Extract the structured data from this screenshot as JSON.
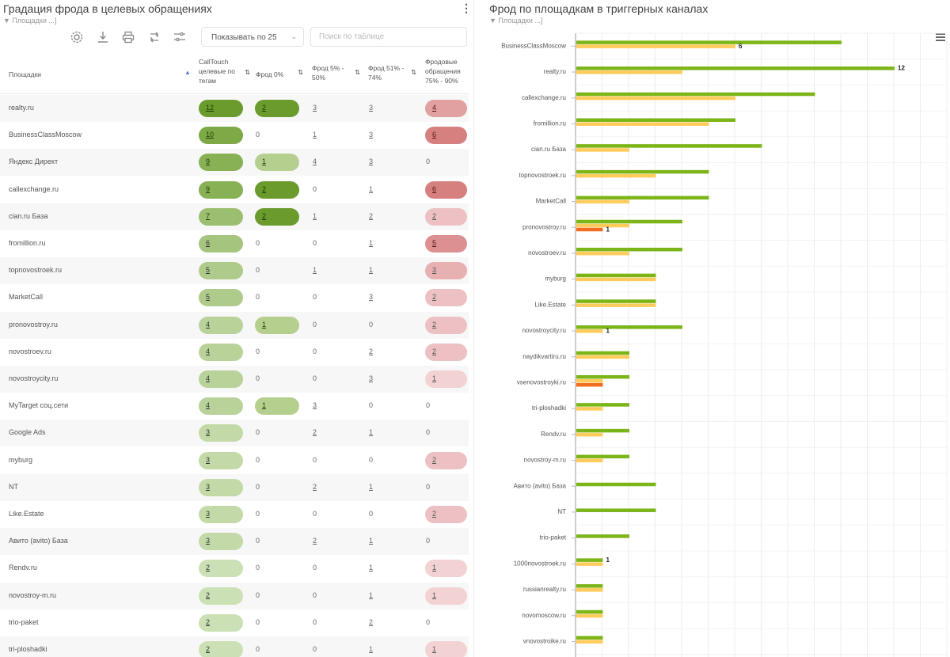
{
  "left_panel": {
    "title": "Градация фрода в целевых обращениях",
    "filter": "▼ Площадки   ...]",
    "kebab": "⋮",
    "page_size": "Показывать по 25",
    "search_placeholder": "Поиск по таблице",
    "toolbar_icons": [
      "gear-icon",
      "download-icon",
      "print-icon",
      "refresh-icon",
      "filter-settings-icon"
    ],
    "columns": {
      "platform": "Площадки",
      "calltouch": "CallTouch целевые по тегам",
      "fraud0": "Фрод 0%",
      "fraud5": "Фрод 5% - 50%",
      "fraud51": "Фрод 51% - 74%",
      "fraud75": "Фродовые обращения 75% - 90%"
    },
    "rows": [
      {
        "platform": "realty.ru",
        "calltouch": "12",
        "fraud0": "2",
        "fraud5": "3",
        "fraud51": "3",
        "fraud75": "4"
      },
      {
        "platform": "BusinessClassMoscow",
        "calltouch": "10",
        "fraud0": "0",
        "fraud5": "1",
        "fraud51": "3",
        "fraud75": "6"
      },
      {
        "platform": "Яндекс Директ",
        "calltouch": "9",
        "fraud0": "1",
        "fraud5": "4",
        "fraud51": "3",
        "fraud75": "0"
      },
      {
        "platform": "callexchange.ru",
        "calltouch": "9",
        "fraud0": "2",
        "fraud5": "0",
        "fraud51": "1",
        "fraud75": "6"
      },
      {
        "platform": "cian.ru База",
        "calltouch": "7",
        "fraud0": "2",
        "fraud5": "1",
        "fraud51": "2",
        "fraud75": "2"
      },
      {
        "platform": "fromillion.ru",
        "calltouch": "6",
        "fraud0": "0",
        "fraud5": "0",
        "fraud51": "1",
        "fraud75": "5"
      },
      {
        "platform": "topnovostroek.ru",
        "calltouch": "5",
        "fraud0": "0",
        "fraud5": "1",
        "fraud51": "1",
        "fraud75": "3"
      },
      {
        "platform": "MarketCall",
        "calltouch": "5",
        "fraud0": "0",
        "fraud5": "0",
        "fraud51": "3",
        "fraud75": "2"
      },
      {
        "platform": "pronovostroy.ru",
        "calltouch": "4",
        "fraud0": "1",
        "fraud5": "0",
        "fraud51": "0",
        "fraud75": "2"
      },
      {
        "platform": "novostroev.ru",
        "calltouch": "4",
        "fraud0": "0",
        "fraud5": "0",
        "fraud51": "2",
        "fraud75": "2"
      },
      {
        "platform": "novostroycity.ru",
        "calltouch": "4",
        "fraud0": "0",
        "fraud5": "0",
        "fraud51": "3",
        "fraud75": "1"
      },
      {
        "platform": "MyTarget соц.сети",
        "calltouch": "4",
        "fraud0": "1",
        "fraud5": "3",
        "fraud51": "0",
        "fraud75": "0"
      },
      {
        "platform": "Google Ads",
        "calltouch": "3",
        "fraud0": "0",
        "fraud5": "2",
        "fraud51": "1",
        "fraud75": "0"
      },
      {
        "platform": "myburg",
        "calltouch": "3",
        "fraud0": "0",
        "fraud5": "0",
        "fraud51": "0",
        "fraud75": "2"
      },
      {
        "platform": "NT",
        "calltouch": "3",
        "fraud0": "0",
        "fraud5": "2",
        "fraud51": "1",
        "fraud75": "0"
      },
      {
        "platform": "Like.Estate",
        "calltouch": "3",
        "fraud0": "0",
        "fraud5": "0",
        "fraud51": "0",
        "fraud75": "2"
      },
      {
        "platform": "Авито (avito) База",
        "calltouch": "3",
        "fraud0": "0",
        "fraud5": "2",
        "fraud51": "1",
        "fraud75": "0"
      },
      {
        "platform": "Rendv.ru",
        "calltouch": "2",
        "fraud0": "0",
        "fraud5": "0",
        "fraud51": "1",
        "fraud75": "1"
      },
      {
        "platform": "novostroy-m.ru",
        "calltouch": "2",
        "fraud0": "0",
        "fraud5": "0",
        "fraud51": "1",
        "fraud75": "1"
      },
      {
        "platform": "trio-paket",
        "calltouch": "2",
        "fraud0": "0",
        "fraud5": "0",
        "fraud51": "2",
        "fraud75": "0"
      },
      {
        "platform": "tri-ploshadki",
        "calltouch": "2",
        "fraud0": "0",
        "fraud5": "0",
        "fraud51": "1",
        "fraud75": "1"
      }
    ]
  },
  "right_panel": {
    "title": "Фрод по площадкам в триггерных каналах",
    "filter": "▼ Площадки   ...]",
    "menu_icon": "hamburger-icon"
  },
  "colors": {
    "green_bar": "#7cb518",
    "yellow_bar": "#ffcc5c",
    "orange_bar": "#f26c21",
    "pill_green_dark": "#6a9b2c",
    "pill_red_dark": "#d08080"
  },
  "chart_data": {
    "type": "bar",
    "orientation": "horizontal",
    "categories": [
      "BusinessClassMoscow",
      "realty.ru",
      "callexchange.ru",
      "fromillion.ru",
      "cian.ru База",
      "topnovostroek.ru",
      "MarketCall",
      "pronovostroy.ru",
      "novostroev.ru",
      "myburg",
      "Like.Estate",
      "novostroycity.ru",
      "naydikvartiru.ru",
      "vsenovostroyki.ru",
      "tri-ploshadki",
      "Rendv.ru",
      "novostroy-m.ru",
      "Авито (avito) База",
      "NT",
      "trio-paket",
      "1000novostroek.ru",
      "russianrealty.ru",
      "novomoscow.ru",
      "vnovostroike.ru"
    ],
    "series": [
      {
        "color": "#7cb518",
        "values": [
          10,
          12,
          9,
          6,
          7,
          5,
          5,
          4,
          4,
          3,
          3,
          4,
          2,
          2,
          2,
          2,
          2,
          3,
          3,
          2,
          1,
          1,
          1,
          1
        ]
      },
      {
        "color": "#ffcc5c",
        "values": [
          6,
          4,
          6,
          5,
          2,
          3,
          2,
          2,
          2,
          3,
          3,
          1,
          2,
          1,
          1,
          1,
          1,
          0,
          0,
          0,
          1,
          1,
          1,
          1
        ]
      },
      {
        "color": "#f26c21",
        "values": [
          0,
          0,
          0,
          0,
          0,
          0,
          0,
          1,
          0,
          0,
          0,
          0,
          0,
          1,
          0,
          0,
          0,
          0,
          0,
          0,
          0,
          0,
          0,
          0
        ]
      }
    ],
    "data_labels": [
      {
        "category": "BusinessClassMoscow",
        "series": 1,
        "text": "6"
      },
      {
        "category": "realty.ru",
        "series": 0,
        "text": "12"
      },
      {
        "category": "pronovostroy.ru",
        "series": 2,
        "text": "1"
      },
      {
        "category": "novostroycity.ru",
        "series": 1,
        "text": "1"
      },
      {
        "category": "1000novostroek.ru",
        "series": 0,
        "text": "1"
      }
    ],
    "xlim": [
      0,
      14
    ],
    "grid": true,
    "legend": "none"
  }
}
